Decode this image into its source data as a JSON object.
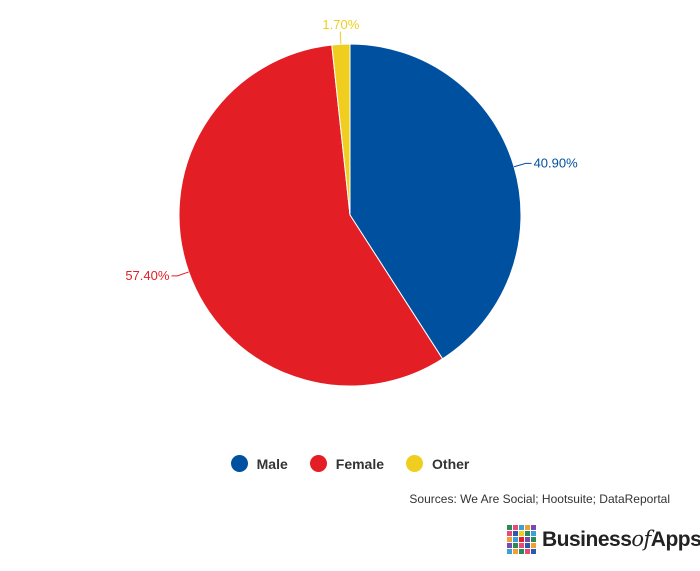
{
  "chart_data": {
    "type": "pie",
    "title": "",
    "slices": [
      {
        "name": "Male",
        "value": 40.9,
        "label": "40.90%",
        "color": "#0050a0"
      },
      {
        "name": "Female",
        "value": 57.4,
        "label": "57.40%",
        "color": "#e31e24"
      },
      {
        "name": "Other",
        "value": 1.7,
        "label": "1.70%",
        "color": "#f0ce20"
      }
    ],
    "start_angle_deg": 0,
    "direction": "clockwise",
    "legend_position": "bottom"
  },
  "legend": {
    "male": "Male",
    "female": "Female",
    "other": "Other"
  },
  "colors": {
    "male": "#0050a0",
    "female": "#e31e24",
    "other": "#f0ce20"
  },
  "source": "Sources: We Are Social; Hootsuite; DataReportal",
  "logo": {
    "word1": "Business",
    "word2": "of",
    "word3": "Apps"
  }
}
